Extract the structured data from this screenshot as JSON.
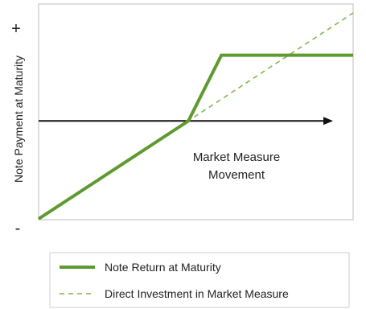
{
  "chart_data": {
    "type": "line",
    "ylabel": "Note Payment at Maturity",
    "y_high_marker": "+",
    "y_low_marker": "-",
    "x_axis_annotation": [
      "Market Measure",
      "Movement"
    ],
    "series": [
      {
        "name": "Note Return at Maturity",
        "style": "solid",
        "color": "#5e9a2e",
        "points": [
          [
            -1.0,
            -0.88
          ],
          [
            0.0,
            0.0
          ],
          [
            0.22,
            0.59
          ],
          [
            1.1,
            0.59
          ]
        ]
      },
      {
        "name": "Direct Investment in Market Measure",
        "style": "dashed",
        "color": "#7fb84a",
        "points": [
          [
            -1.0,
            -0.88
          ],
          [
            1.1,
            0.97
          ]
        ]
      }
    ],
    "xlim": [
      -1.0,
      1.1
    ],
    "ylim": [
      -0.88,
      1.05
    ],
    "grid": false,
    "legend_position": "bottom"
  },
  "legend": {
    "items": [
      {
        "label": "Note Return at Maturity"
      },
      {
        "label": "Direct Investment in Market Measure"
      }
    ]
  }
}
